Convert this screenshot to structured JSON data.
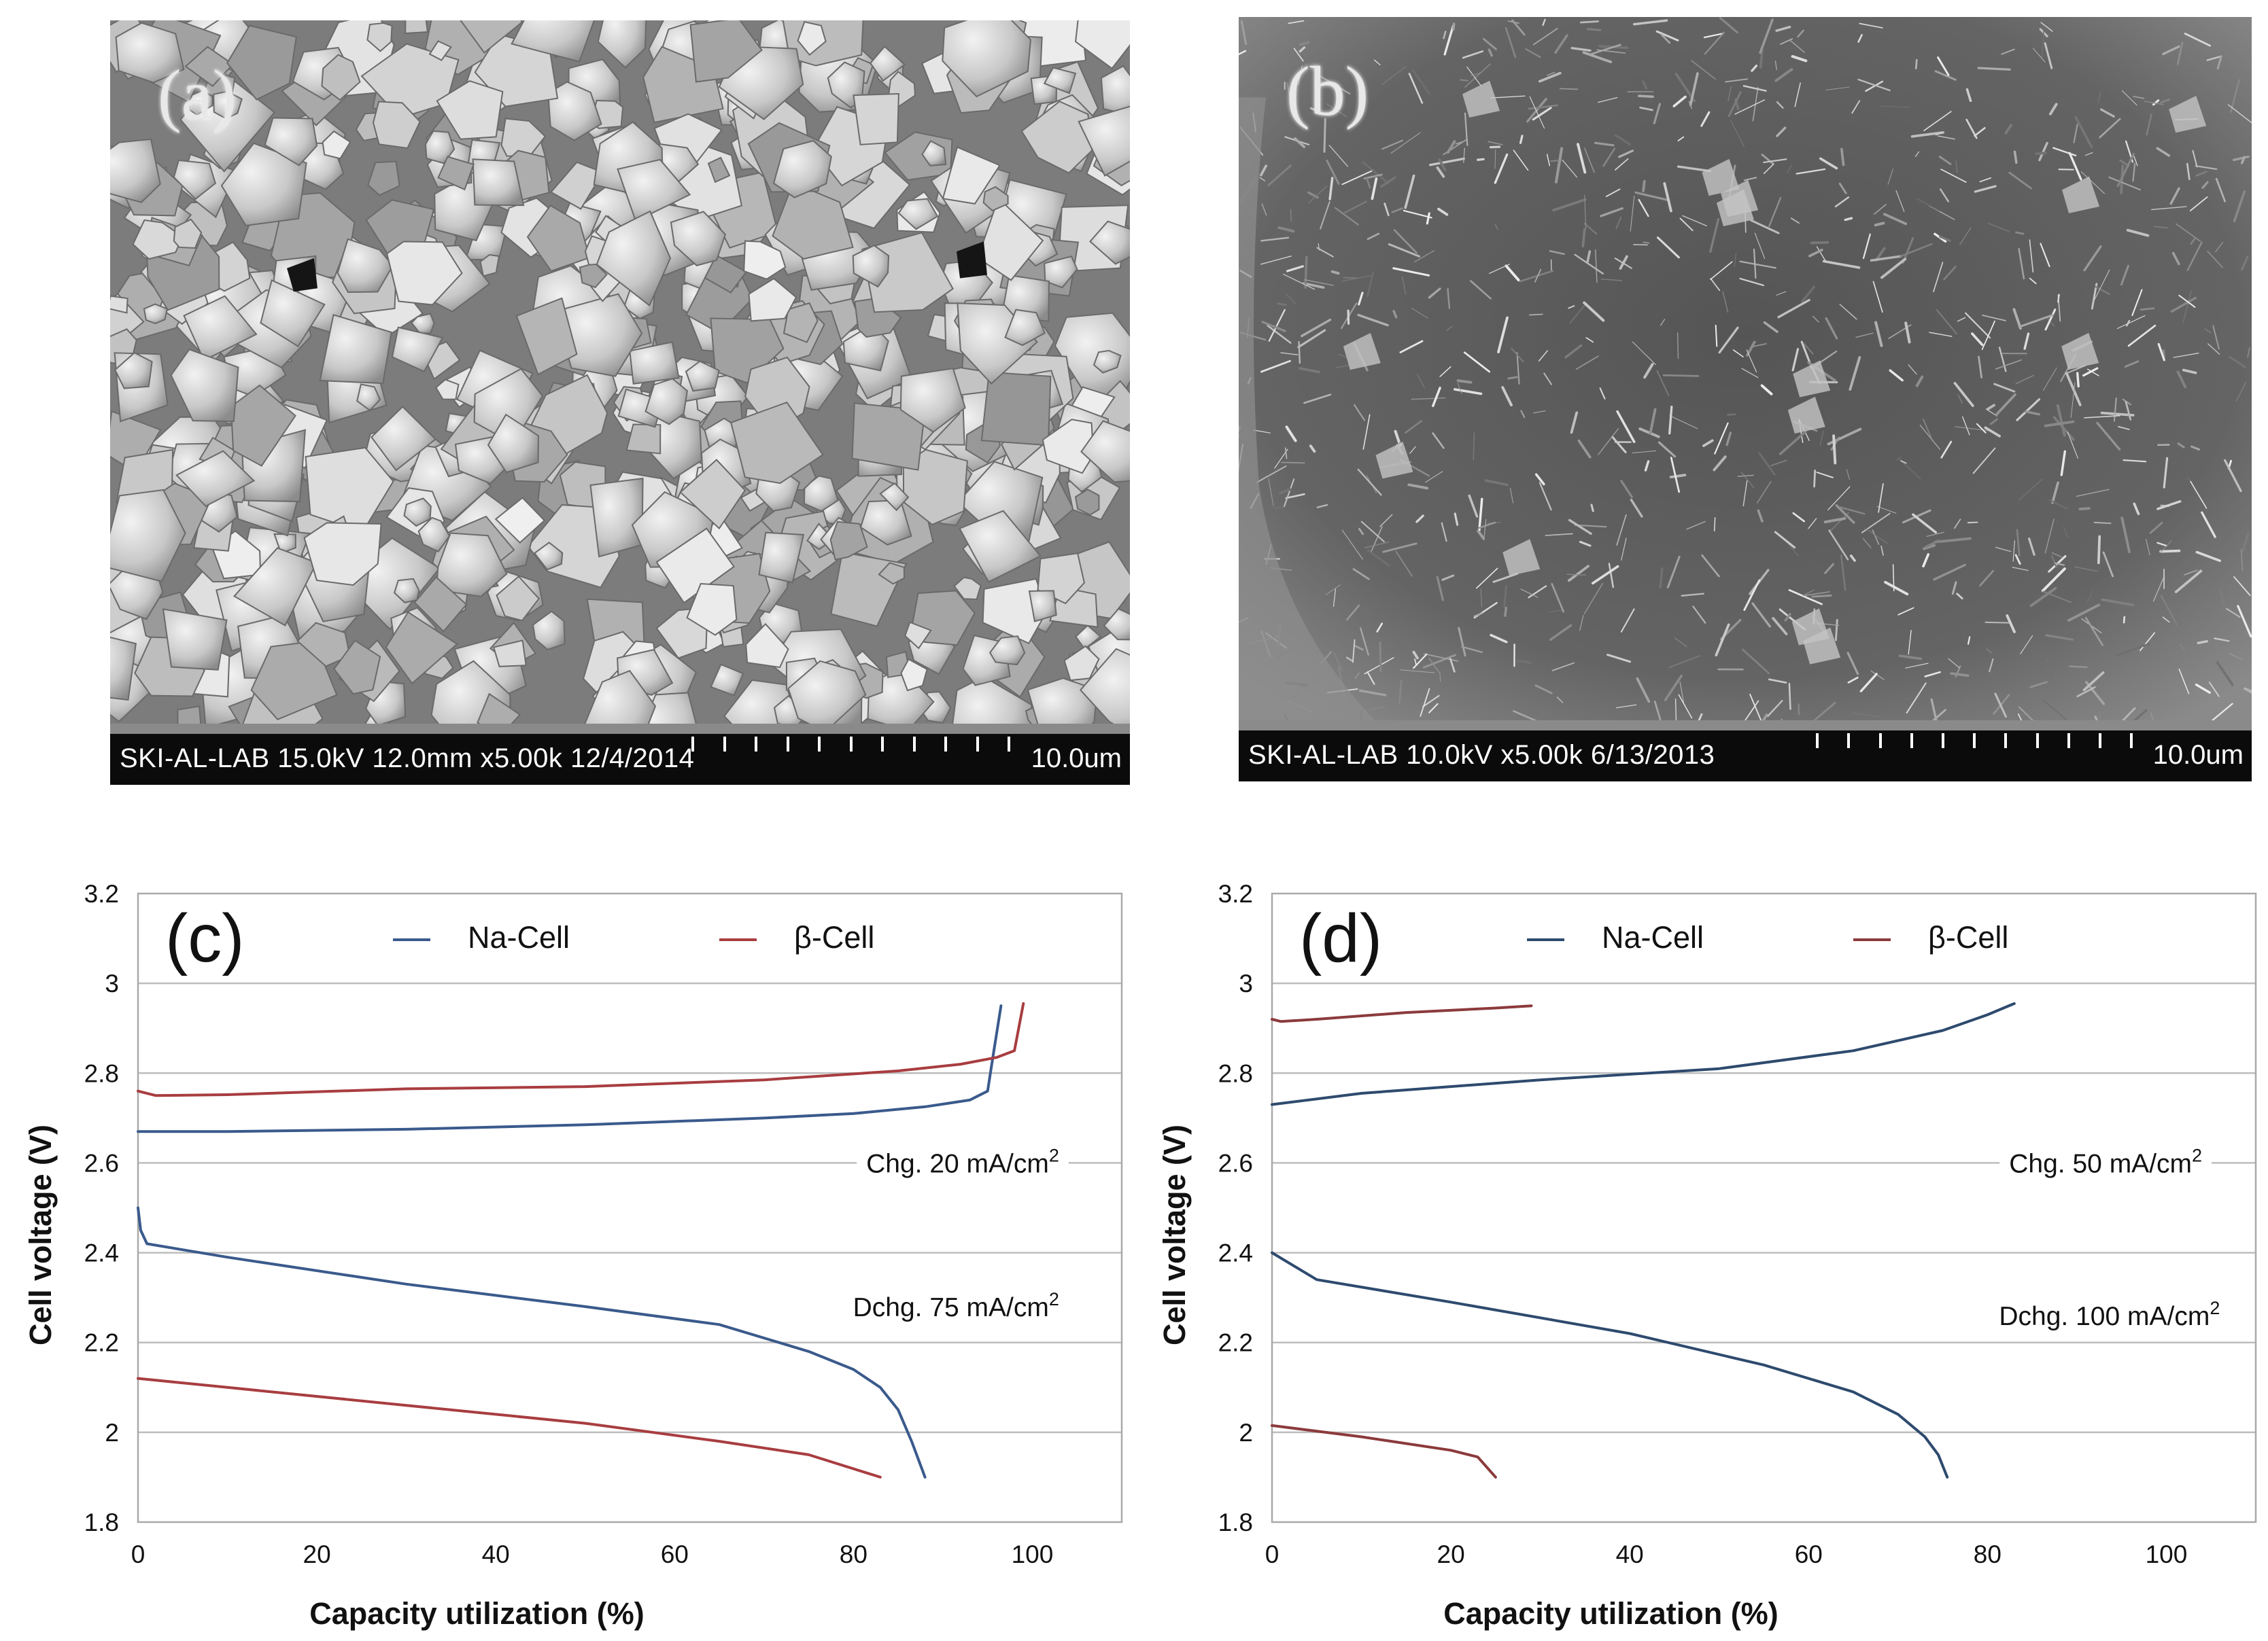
{
  "panels": {
    "a": {
      "label": "(a)",
      "caption": "SKI-AL-LAB 15.0kV 12.0mm x5.00k 12/4/2014",
      "scale": "10.0um"
    },
    "b": {
      "label": "(b)",
      "caption": "SKI-AL-LAB 10.0kV x5.00k 6/13/2013",
      "scale": "10.0um"
    }
  },
  "chart_data": [
    {
      "type": "line",
      "panel_label": "(c)",
      "xlabel": "Capacity utilization (%)",
      "ylabel": "Cell voltage (V)",
      "xlim": [
        0,
        110
      ],
      "ylim": [
        1.8,
        3.2
      ],
      "xticks": [
        "0",
        "20",
        "40",
        "60",
        "80",
        "100"
      ],
      "yticks": [
        "1.8",
        "2",
        "2.2",
        "2.4",
        "2.6",
        "2.8",
        "3",
        "3.2"
      ],
      "grid": "horizontal",
      "legend_position": "top",
      "legend": [
        "Na-Cell",
        "β-Cell"
      ],
      "annotations": {
        "charge": {
          "prefix": "Chg. 20 mA/cm",
          "sup": "2",
          "x": 103,
          "y": 2.6
        },
        "discharge": {
          "prefix": "Dchg. 75 mA/cm",
          "sup": "2",
          "x": 103,
          "y": 2.28
        }
      },
      "colors": {
        "Na-Cell": "#3a5a8c",
        "β-Cell": "#a83d40"
      },
      "series": [
        {
          "name": "Na-Cell",
          "segment": "charge",
          "points": [
            [
              0,
              2.67
            ],
            [
              10,
              2.67
            ],
            [
              30,
              2.675
            ],
            [
              50,
              2.685
            ],
            [
              70,
              2.7
            ],
            [
              80,
              2.71
            ],
            [
              88,
              2.725
            ],
            [
              93,
              2.74
            ],
            [
              95,
              2.76
            ],
            [
              95.7,
              2.85
            ],
            [
              96.5,
              2.95
            ]
          ]
        },
        {
          "name": "β-Cell",
          "segment": "charge",
          "points": [
            [
              0,
              2.76
            ],
            [
              2,
              2.75
            ],
            [
              10,
              2.752
            ],
            [
              30,
              2.765
            ],
            [
              50,
              2.77
            ],
            [
              70,
              2.785
            ],
            [
              85,
              2.805
            ],
            [
              92,
              2.82
            ],
            [
              96,
              2.835
            ],
            [
              98,
              2.85
            ],
            [
              99,
              2.955
            ]
          ]
        },
        {
          "name": "Na-Cell",
          "segment": "discharge",
          "points": [
            [
              0,
              2.5
            ],
            [
              0.3,
              2.45
            ],
            [
              1,
              2.42
            ],
            [
              10,
              2.39
            ],
            [
              30,
              2.33
            ],
            [
              50,
              2.28
            ],
            [
              65,
              2.24
            ],
            [
              75,
              2.18
            ],
            [
              80,
              2.14
            ],
            [
              83,
              2.1
            ],
            [
              85,
              2.05
            ],
            [
              86.5,
              1.98
            ],
            [
              88,
              1.9
            ]
          ]
        },
        {
          "name": "β-Cell",
          "segment": "discharge",
          "points": [
            [
              0,
              2.12
            ],
            [
              10,
              2.1
            ],
            [
              30,
              2.06
            ],
            [
              50,
              2.02
            ],
            [
              65,
              1.98
            ],
            [
              75,
              1.95
            ],
            [
              83,
              1.9
            ]
          ]
        }
      ]
    },
    {
      "type": "line",
      "panel_label": "(d)",
      "xlabel": "Capacity utilization (%)",
      "ylabel": "Cell voltage (V)",
      "xlim": [
        0,
        110
      ],
      "ylim": [
        1.8,
        3.2
      ],
      "xticks": [
        "0",
        "20",
        "40",
        "60",
        "80",
        "100"
      ],
      "yticks": [
        "1.8",
        "2",
        "2.2",
        "2.4",
        "2.6",
        "2.8",
        "3",
        "3.2"
      ],
      "grid": "horizontal",
      "legend_position": "top",
      "legend": [
        "Na-Cell",
        "β-Cell"
      ],
      "annotations": {
        "charge": {
          "prefix": "Chg. 50 mA/cm",
          "sup": "2",
          "x": 104,
          "y": 2.6
        },
        "discharge": {
          "prefix": "Dchg. 100 mA/cm",
          "sup": "2",
          "x": 106,
          "y": 2.26
        }
      },
      "colors": {
        "Na-Cell": "#2e4a6e",
        "β-Cell": "#8c3a3c"
      },
      "series": [
        {
          "name": "β-Cell",
          "segment": "charge",
          "points": [
            [
              0,
              2.92
            ],
            [
              1,
              2.915
            ],
            [
              5,
              2.92
            ],
            [
              15,
              2.935
            ],
            [
              25,
              2.945
            ],
            [
              29,
              2.95
            ]
          ]
        },
        {
          "name": "Na-Cell",
          "segment": "charge",
          "points": [
            [
              0,
              2.73
            ],
            [
              10,
              2.755
            ],
            [
              30,
              2.785
            ],
            [
              50,
              2.81
            ],
            [
              65,
              2.85
            ],
            [
              75,
              2.895
            ],
            [
              80,
              2.93
            ],
            [
              83,
              2.955
            ]
          ]
        },
        {
          "name": "Na-Cell",
          "segment": "discharge",
          "points": [
            [
              0,
              2.4
            ],
            [
              5,
              2.34
            ],
            [
              20,
              2.29
            ],
            [
              40,
              2.22
            ],
            [
              55,
              2.15
            ],
            [
              65,
              2.09
            ],
            [
              70,
              2.04
            ],
            [
              73,
              1.99
            ],
            [
              74.5,
              1.95
            ],
            [
              75.5,
              1.9
            ]
          ]
        },
        {
          "name": "β-Cell",
          "segment": "discharge",
          "points": [
            [
              0,
              2.015
            ],
            [
              10,
              1.99
            ],
            [
              20,
              1.96
            ],
            [
              23,
              1.945
            ],
            [
              25,
              1.9
            ]
          ]
        }
      ]
    }
  ]
}
